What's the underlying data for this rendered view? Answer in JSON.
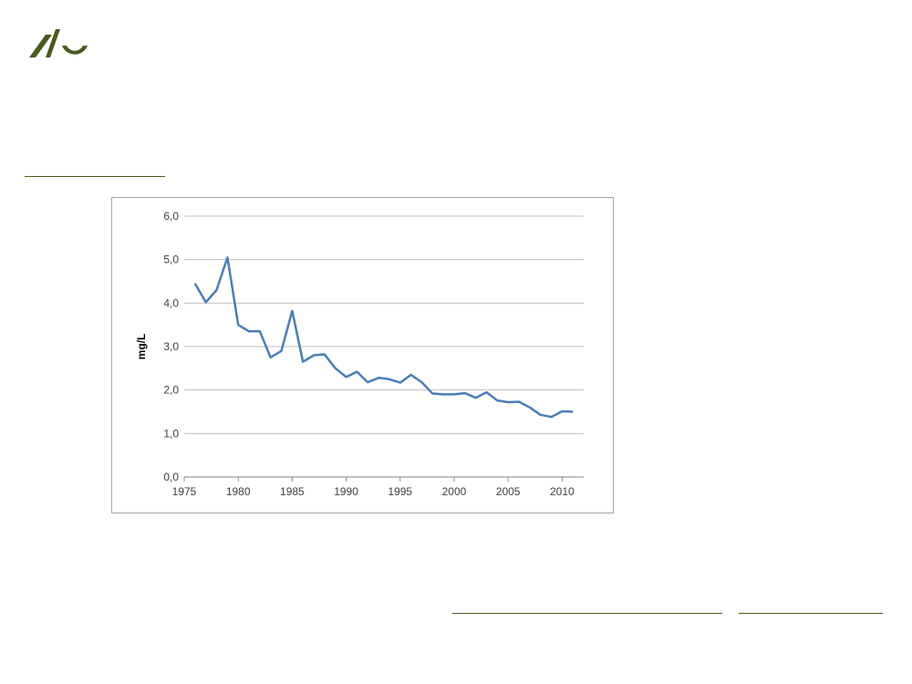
{
  "logo": {
    "color": "#4a5a1f",
    "icon": "au-logo-icon"
  },
  "colors": {
    "rule": "#4a5a1f",
    "grid": "#bfbfbf",
    "series": "#4a7ebb"
  },
  "chart_data": {
    "type": "line",
    "title": "",
    "xlabel": "",
    "ylabel": "mg/L",
    "xlim": [
      1975,
      2012
    ],
    "ylim": [
      0,
      6
    ],
    "grid": true,
    "x_ticks": [
      "1975",
      "1980",
      "1985",
      "1990",
      "1995",
      "2000",
      "2005",
      "2010"
    ],
    "y_ticks": [
      "0,0",
      "1,0",
      "2,0",
      "3,0",
      "4,0",
      "5,0",
      "6,0"
    ],
    "series": [
      {
        "x": [
          1976,
          1977,
          1978,
          1979,
          1980,
          1981,
          1982,
          1983,
          1984,
          1985,
          1986,
          1987,
          1988,
          1989,
          1990,
          1991,
          1992,
          1993,
          1994,
          1995,
          1996,
          1997,
          1998,
          1999,
          2000,
          2001,
          2002,
          2003,
          2004,
          2005,
          2006,
          2007,
          2008,
          2009,
          2010,
          2011
        ],
        "values": [
          4.45,
          4.02,
          4.3,
          5.05,
          3.5,
          3.35,
          3.35,
          2.75,
          2.9,
          3.82,
          2.65,
          2.8,
          2.82,
          2.5,
          2.3,
          2.42,
          2.18,
          2.28,
          2.25,
          2.17,
          2.35,
          2.18,
          1.92,
          1.9,
          1.9,
          1.93,
          1.82,
          1.95,
          1.76,
          1.72,
          1.73,
          1.6,
          1.43,
          1.38,
          1.51,
          1.5
        ]
      }
    ]
  }
}
